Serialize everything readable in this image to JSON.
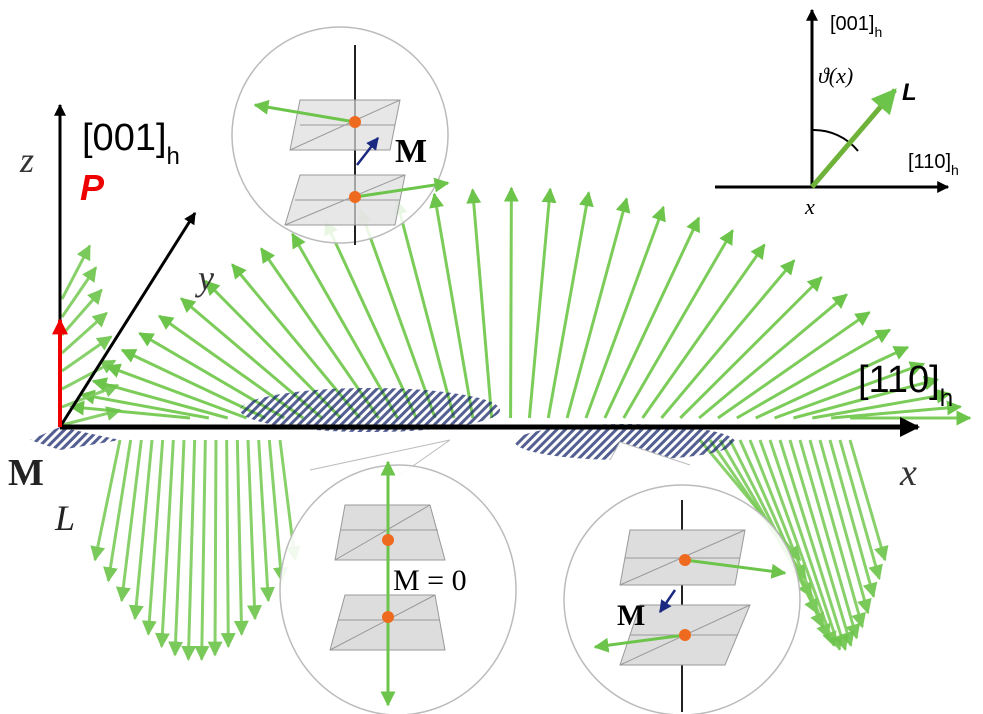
{
  "main_axes": {
    "z_label": "z",
    "z_direction": {
      "text": "[001]",
      "subscript": "h"
    },
    "polarization": "P",
    "y_label": "y",
    "x_direction": {
      "text": "[110]",
      "subscript": "h"
    },
    "x_label": "x",
    "magnetization": "M",
    "antiferro_vector": "L"
  },
  "insets": {
    "top": {
      "label": "M"
    },
    "bottom_center": {
      "label": "M = 0"
    },
    "bottom_right": {
      "label": "M"
    }
  },
  "angle_diagram": {
    "vertical_axis": {
      "text": "[001]",
      "subscript": "h"
    },
    "angle": "ϑ(x)",
    "vector": "L",
    "horizontal_axis": {
      "text": "[110]",
      "subscript": "h"
    },
    "origin": "x"
  }
}
